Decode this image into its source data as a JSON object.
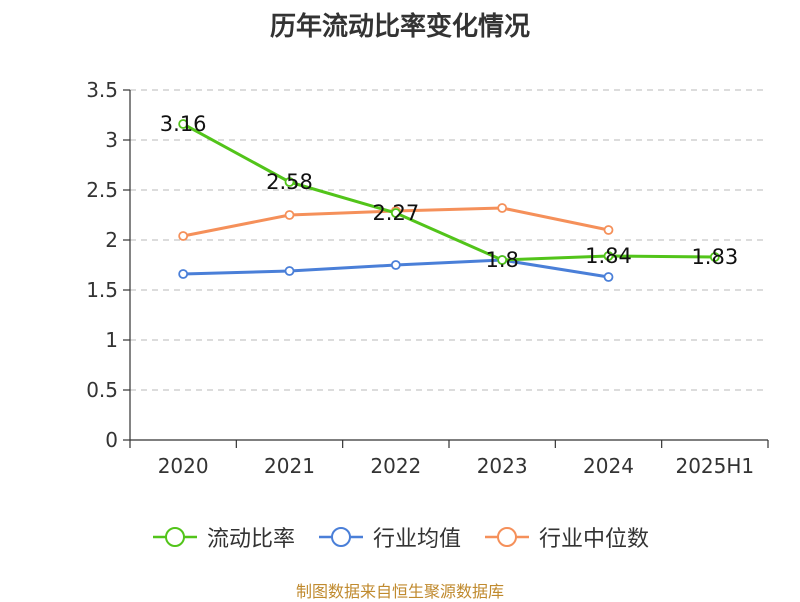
{
  "chart_data": {
    "type": "line",
    "title": "历年流动比率变化情况",
    "categories": [
      "2020",
      "2021",
      "2022",
      "2023",
      "2024",
      "2025H1"
    ],
    "ylim": [
      0,
      3.5
    ],
    "yticks": [
      "0",
      "0.5",
      "1",
      "1.5",
      "2",
      "2.5",
      "3",
      "3.5"
    ],
    "grid": true,
    "legend_position": "bottom",
    "series": [
      {
        "name": "流动比率",
        "color": "#52c41a",
        "values": [
          3.16,
          2.58,
          2.27,
          1.8,
          1.84,
          1.83
        ],
        "labels": [
          "3.16",
          "2.58",
          "2.27",
          "1.8",
          "1.84",
          "1.83"
        ],
        "show_labels": true
      },
      {
        "name": "行业均值",
        "color": "#4a7fd8",
        "values": [
          1.66,
          1.69,
          1.75,
          1.8,
          1.63,
          null
        ],
        "show_labels": false
      },
      {
        "name": "行业中位数",
        "color": "#f5905a",
        "values": [
          2.04,
          2.25,
          2.29,
          2.32,
          2.1,
          null
        ],
        "show_labels": false
      }
    ]
  },
  "source_note": "制图数据来自恒生聚源数据库"
}
